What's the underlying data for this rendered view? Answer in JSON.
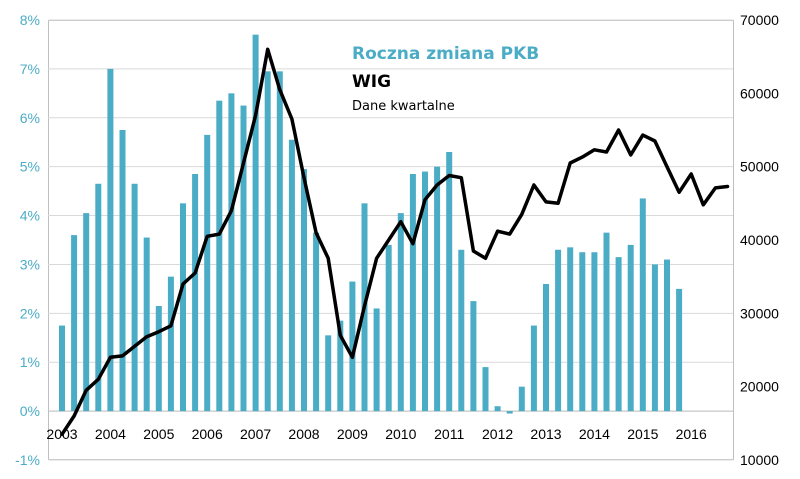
{
  "chart_data": {
    "type": "bar+line",
    "title": "",
    "legend": {
      "gdp_label": "Roczna zmiana PKB",
      "wig_label": "WIG",
      "note": "Dane kwartalne"
    },
    "colors": {
      "bars": "#4bacc6",
      "line": "#000000",
      "left_axis_text": "#4bacc6",
      "right_axis_text": "#000000"
    },
    "x_tick_labels": [
      "2003",
      "2004",
      "2005",
      "2006",
      "2007",
      "2008",
      "2009",
      "2010",
      "2011",
      "2012",
      "2013",
      "2014",
      "2015",
      "2016"
    ],
    "quarters_start": "2003-Q1",
    "y_left": {
      "range": [
        -1,
        8
      ],
      "ticks": [
        -1,
        0,
        1,
        2,
        3,
        4,
        5,
        6,
        7,
        8
      ],
      "tick_labels": [
        "-1%",
        "0%",
        "1%",
        "2%",
        "3%",
        "4%",
        "5%",
        "6%",
        "7%",
        "8%"
      ]
    },
    "y_right": {
      "range": [
        10000,
        70000
      ],
      "ticks": [
        10000,
        20000,
        30000,
        40000,
        50000,
        60000,
        70000
      ],
      "tick_labels": [
        "10000",
        "20000",
        "30000",
        "40000",
        "50000",
        "60000",
        "70000"
      ]
    },
    "series": [
      {
        "name": "Roczna zmiana PKB",
        "type": "bar",
        "axis": "left",
        "values": [
          1.75,
          3.6,
          4.05,
          4.65,
          7.0,
          5.75,
          4.65,
          3.55,
          2.15,
          2.75,
          4.25,
          4.85,
          5.65,
          6.35,
          6.5,
          6.25,
          7.7,
          6.95,
          6.95,
          5.55,
          4.95,
          3.65,
          1.55,
          1.85,
          2.65,
          4.25,
          2.1,
          3.4,
          4.05,
          4.85,
          4.9,
          5.0,
          5.3,
          3.3,
          2.25,
          0.9,
          0.1,
          -0.05,
          0.5,
          1.75,
          2.6,
          3.3,
          3.35,
          3.25,
          3.25,
          3.65,
          3.15,
          3.4,
          4.35,
          3.0,
          3.1,
          2.5
        ]
      },
      {
        "name": "WIG",
        "type": "line",
        "axis": "right",
        "values": [
          13500,
          16000,
          19500,
          21000,
          24000,
          24200,
          25500,
          26800,
          27500,
          28300,
          34000,
          35500,
          40500,
          40800,
          44000,
          50500,
          57000,
          66000,
          60500,
          56500,
          48500,
          41000,
          37500,
          27000,
          24000,
          31000,
          37500,
          40000,
          42500,
          39500,
          45500,
          47500,
          48800,
          48500,
          38500,
          37500,
          41200,
          40800,
          43500,
          47500,
          45200,
          45000,
          50500,
          51300,
          52300,
          52000,
          55000,
          51600,
          54300,
          53500,
          50000,
          46500,
          49000,
          44800,
          47100,
          47300
        ]
      }
    ]
  }
}
